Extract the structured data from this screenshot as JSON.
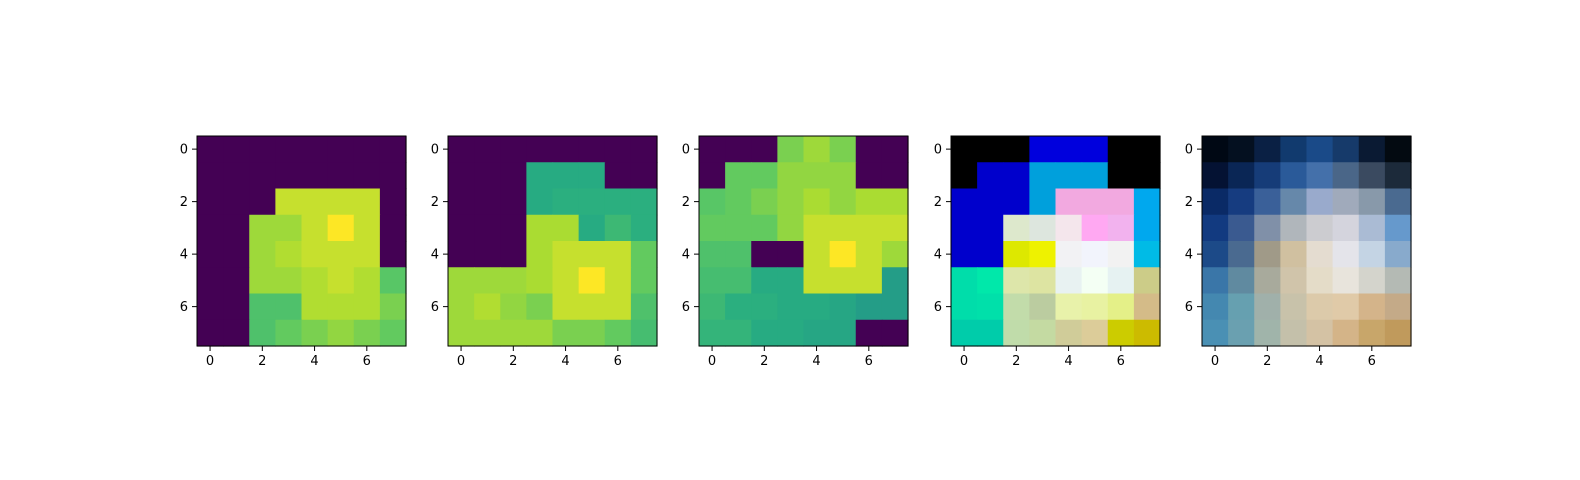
{
  "chart_data": [
    {
      "type": "heatmap",
      "colormap": "viridis",
      "xticks": [
        "0",
        "2",
        "4",
        "6"
      ],
      "yticks": [
        "0",
        "2",
        "4",
        "6"
      ],
      "values": [
        [
          0,
          0,
          0,
          0,
          0,
          0,
          0,
          0
        ],
        [
          0,
          0,
          0,
          0,
          0,
          0,
          0,
          0
        ],
        [
          0,
          0,
          0,
          0.92,
          0.92,
          0.92,
          0.92,
          0
        ],
        [
          0,
          0,
          0.86,
          0.86,
          0.92,
          1.0,
          0.92,
          0
        ],
        [
          0,
          0,
          0.86,
          0.89,
          0.92,
          0.92,
          0.92,
          0
        ],
        [
          0,
          0,
          0.86,
          0.86,
          0.89,
          0.92,
          0.89,
          0.74
        ],
        [
          0,
          0,
          0.72,
          0.72,
          0.89,
          0.89,
          0.89,
          0.8
        ],
        [
          0,
          0,
          0.72,
          0.76,
          0.8,
          0.84,
          0.8,
          0.76
        ]
      ]
    },
    {
      "type": "heatmap",
      "colormap": "viridis",
      "xticks": [
        "0",
        "2",
        "4",
        "6"
      ],
      "yticks": [
        "0",
        "2",
        "4",
        "6"
      ],
      "values": [
        [
          0,
          0,
          0,
          0,
          0,
          0,
          0,
          0
        ],
        [
          0,
          0,
          0,
          0.62,
          0.62,
          0.62,
          0,
          0
        ],
        [
          0,
          0,
          0,
          0.62,
          0.64,
          0.64,
          0.64,
          0.64
        ],
        [
          0,
          0,
          0,
          0.88,
          0.88,
          0.62,
          0.68,
          0.64
        ],
        [
          0,
          0,
          0,
          0.88,
          0.92,
          0.92,
          0.92,
          0.76
        ],
        [
          0.86,
          0.86,
          0.86,
          0.88,
          0.92,
          1.0,
          0.92,
          0.76
        ],
        [
          0.86,
          0.89,
          0.84,
          0.8,
          0.92,
          0.92,
          0.92,
          0.72
        ],
        [
          0.86,
          0.86,
          0.86,
          0.86,
          0.8,
          0.8,
          0.76,
          0.7
        ]
      ]
    },
    {
      "type": "heatmap",
      "colormap": "viridis",
      "xticks": [
        "0",
        "2",
        "4",
        "6"
      ],
      "yticks": [
        "0",
        "2",
        "4",
        "6"
      ],
      "values": [
        [
          0,
          0,
          0,
          0.8,
          0.86,
          0.8,
          0,
          0
        ],
        [
          0,
          0.76,
          0.76,
          0.84,
          0.84,
          0.84,
          0,
          0
        ],
        [
          0.74,
          0.76,
          0.8,
          0.84,
          0.88,
          0.84,
          0.88,
          0.88
        ],
        [
          0.76,
          0.76,
          0.76,
          0.84,
          0.92,
          0.92,
          0.92,
          0.92
        ],
        [
          0.72,
          0.72,
          0,
          0,
          0.92,
          1.0,
          0.92,
          0.86
        ],
        [
          0.7,
          0.7,
          0.62,
          0.62,
          0.92,
          0.92,
          0.92,
          0.56
        ],
        [
          0.68,
          0.64,
          0.64,
          0.62,
          0.62,
          0.6,
          0.56,
          0.56
        ],
        [
          0.66,
          0.66,
          0.62,
          0.62,
          0.6,
          0.6,
          0,
          0
        ]
      ]
    },
    {
      "type": "heatmap",
      "colormap": "rgb",
      "xticks": [
        "0",
        "2",
        "4",
        "6"
      ],
      "yticks": [
        "0",
        "2",
        "4",
        "6"
      ],
      "values": [
        [
          "#000000",
          "#000000",
          "#000000",
          "#0000dd",
          "#0000dd",
          "#0000dd",
          "#000000",
          "#000000"
        ],
        [
          "#000000",
          "#0000cc",
          "#0000cc",
          "#00a0dc",
          "#00a0dc",
          "#00a0dc",
          "#000000",
          "#000000"
        ],
        [
          "#0000cc",
          "#0000cc",
          "#0000cc",
          "#00a0dc",
          "#f2a9e0",
          "#f2a9e0",
          "#f2a9e0",
          "#00a8ee"
        ],
        [
          "#0000cc",
          "#0000cc",
          "#dde8cc",
          "#dde6de",
          "#f4e6ec",
          "#ffa8f2",
          "#f2b2ee",
          "#00a8ee"
        ],
        [
          "#0000cc",
          "#0000cc",
          "#dde800",
          "#eef200",
          "#f2f2f4",
          "#f2f4fc",
          "#f2f2f2",
          "#00bbe6"
        ],
        [
          "#00ddaa",
          "#00e8aa",
          "#dde6aa",
          "#dde4a2",
          "#e8f2f2",
          "#f4fff4",
          "#e6f2f2",
          "#cccc88"
        ],
        [
          "#00ddaa",
          "#00e0aa",
          "#c2dcaa",
          "#bbcca0",
          "#e8f2aa",
          "#e8f2a2",
          "#e4f088",
          "#d4bb88"
        ],
        [
          "#00ccaa",
          "#00ccaa",
          "#c0dcaa",
          "#c4daa2",
          "#d0cc99",
          "#dccc99",
          "#cccc00",
          "#ccbb00"
        ]
      ]
    },
    {
      "type": "heatmap",
      "colormap": "rgb",
      "xticks": [
        "0",
        "2",
        "4",
        "6"
      ],
      "yticks": [
        "0",
        "2",
        "4",
        "6"
      ],
      "values": [
        [
          "#000814",
          "#041020",
          "#0a2044",
          "#113a6e",
          "#1a4a88",
          "#163a6a",
          "#0a1a33",
          "#030a11"
        ],
        [
          "#041233",
          "#0a2655",
          "#163c78",
          "#2a5a99",
          "#4470aa",
          "#4a6688",
          "#3a4a60",
          "#1c2a3a"
        ],
        [
          "#0a2a66",
          "#163c80",
          "#3a6099",
          "#6688aa",
          "#99aacc",
          "#a0aabb",
          "#8899aa",
          "#4a6a90"
        ],
        [
          "#123a80",
          "#3a5a90",
          "#8090a8",
          "#b0b6bb",
          "#ccccd0",
          "#d4d4dd",
          "#aabbd4",
          "#6699cc"
        ],
        [
          "#1c4a88",
          "#4a6a90",
          "#a09a88",
          "#d0c0a0",
          "#e4dcd0",
          "#e4e4ea",
          "#c4d4e4",
          "#88aacc"
        ],
        [
          "#3a76a8",
          "#608aa0",
          "#a8aa9c",
          "#d0c4aa",
          "#e4dcc8",
          "#e8e4dc",
          "#d4d4cc",
          "#b4bab4"
        ],
        [
          "#4488b0",
          "#66a0b0",
          "#a0b0aa",
          "#c8c2aa",
          "#dccaaa",
          "#e0caa8",
          "#d4b48a",
          "#c4aa88"
        ],
        [
          "#4a90b4",
          "#6aa0b0",
          "#a0b4aa",
          "#c4c0aa",
          "#d4c2a4",
          "#d4b488",
          "#c8a66a",
          "#c09a5c"
        ]
      ]
    }
  ]
}
